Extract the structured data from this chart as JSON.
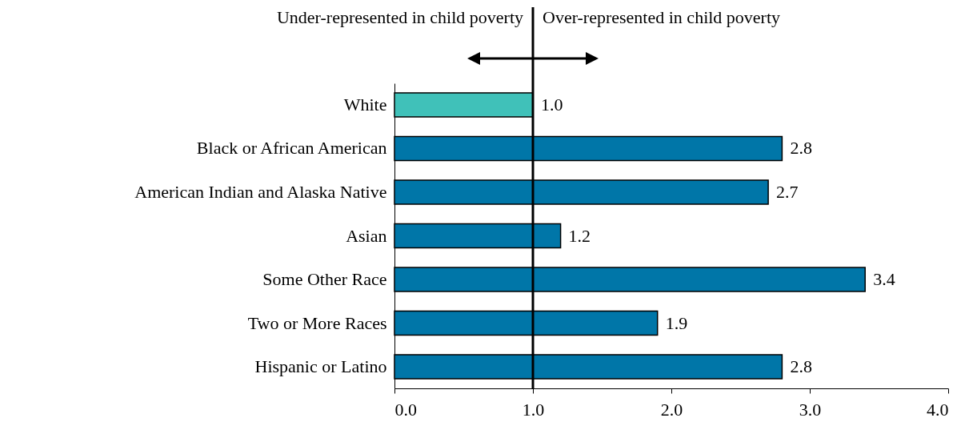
{
  "chart_data": {
    "type": "bar",
    "orientation": "horizontal",
    "categories": [
      "White",
      "Black or African American",
      "American Indian and Alaska Native",
      "Asian",
      "Some Other Race",
      "Two or More Races",
      "Hispanic or Latino"
    ],
    "values": [
      1.0,
      2.8,
      2.7,
      1.2,
      3.4,
      1.9,
      2.8
    ],
    "colors": [
      "#40c1b9",
      "#0076a8",
      "#0076a8",
      "#0076a8",
      "#0076a8",
      "#0076a8",
      "#0076a8"
    ],
    "value_labels": [
      "1.0",
      "2.8",
      "2.7",
      "1.2",
      "3.4",
      "1.9",
      "2.8"
    ],
    "xlim": [
      0,
      4
    ],
    "xticks": [
      {
        "value": 0,
        "label": "0.0"
      },
      {
        "value": 1,
        "label": "1.0"
      },
      {
        "value": 2,
        "label": "2.0"
      },
      {
        "value": 3,
        "label": "3.0"
      },
      {
        "value": 4,
        "label": "4.0"
      }
    ],
    "ref_lines": [
      {
        "axis": "x",
        "value": 1,
        "label": null,
        "color": "#000000"
      }
    ],
    "annotations": [
      "Under-represented in child poverty",
      "Over-represented in child poverty"
    ],
    "grid": false,
    "legend": false
  }
}
